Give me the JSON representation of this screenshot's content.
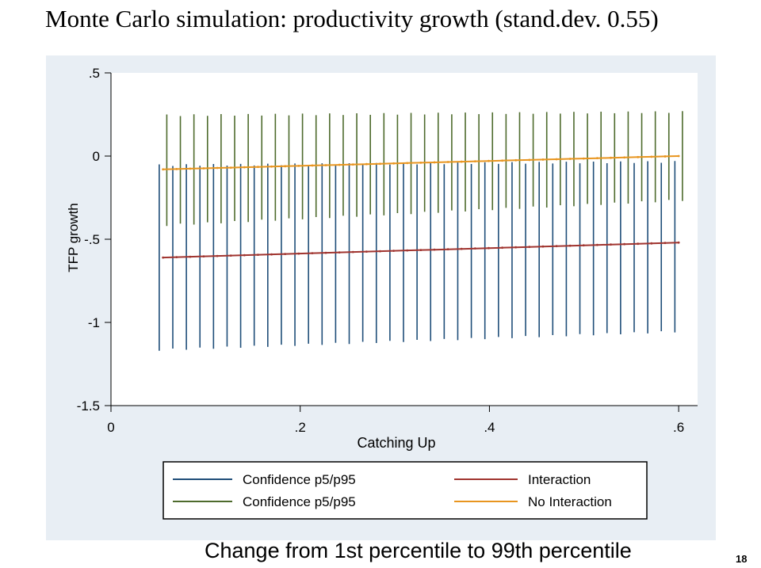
{
  "slide": {
    "title": "Monte Carlo simulation: productivity growth (stand.dev. 0.55)",
    "subtitle": "Change from 1st percentile to 99th percentile",
    "page_number": "18"
  },
  "colors": {
    "plot_region_bg": "#e8eef4",
    "plot_bg": "#ffffff",
    "ci_blue": "#1f4e79",
    "ci_green": "#4e6b2d",
    "interaction": "#a0342f",
    "no_interaction": "#e8951f"
  },
  "chart_data": {
    "type": "line",
    "xlabel": "Catching Up",
    "ylabel": "TFP growth",
    "xlim": [
      0,
      0.62
    ],
    "ylim": [
      -1.5,
      0.5
    ],
    "xticks": [
      {
        "value": 0,
        "label": "0"
      },
      {
        "value": 0.2,
        "label": ".2"
      },
      {
        "value": 0.4,
        "label": ".4"
      },
      {
        "value": 0.6,
        "label": ".6"
      }
    ],
    "yticks": [
      {
        "value": 0.5,
        "label": ".5"
      },
      {
        "value": 0,
        "label": "0"
      },
      {
        "value": -0.5,
        "label": "-.5"
      },
      {
        "value": -1,
        "label": "-1"
      },
      {
        "value": -1.5,
        "label": "-1.5"
      }
    ],
    "x_range": [
      0.055,
      0.6
    ],
    "n_points": 39,
    "series": [
      {
        "name": "Confidence p5/p95",
        "kind": "ci",
        "color_key": "ci_blue",
        "offset": -0.004,
        "low": [
          -1.17,
          -1.06
        ],
        "high": [
          -0.05,
          -0.03
        ]
      },
      {
        "name": "Confidence p5/p95",
        "kind": "ci",
        "color_key": "ci_green",
        "offset": 0.004,
        "low": [
          -0.42,
          -0.27
        ],
        "high": [
          0.25,
          0.27
        ]
      },
      {
        "name": "Interaction",
        "kind": "line",
        "color_key": "interaction",
        "values": [
          -0.61,
          -0.52
        ]
      },
      {
        "name": "No Interaction",
        "kind": "line",
        "color_key": "no_interaction",
        "values": [
          -0.08,
          0.0
        ]
      }
    ],
    "legend": [
      {
        "label": "Confidence p5/p95",
        "color_key": "ci_blue"
      },
      {
        "label": "Interaction",
        "color_key": "interaction"
      },
      {
        "label": "Confidence p5/p95",
        "color_key": "ci_green"
      },
      {
        "label": "No Interaction",
        "color_key": "no_interaction"
      }
    ],
    "legend_position": "bottom"
  }
}
